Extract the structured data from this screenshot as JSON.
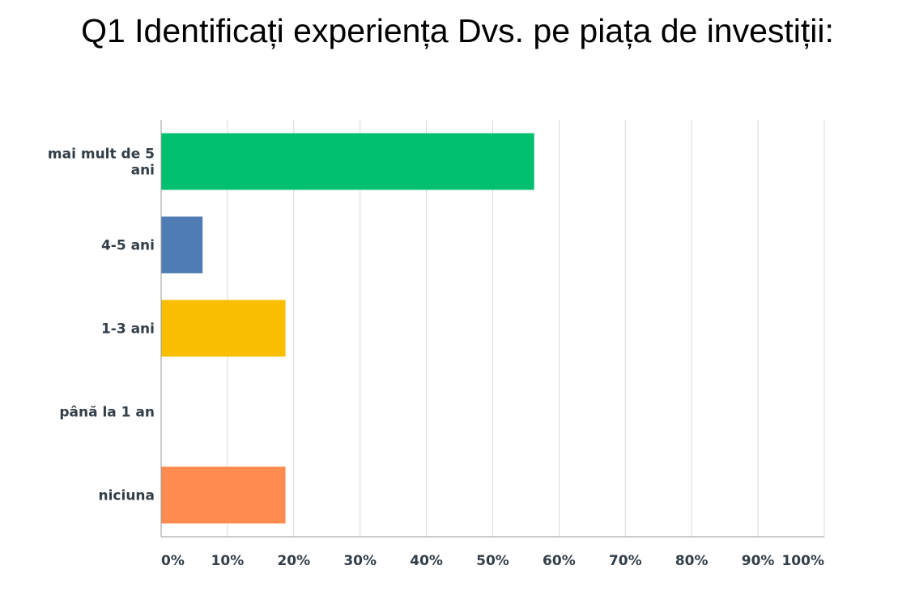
{
  "chart_data": {
    "type": "bar",
    "orientation": "horizontal",
    "title": "Q1 Identificați experiența Dvs. pe piața de investiții:",
    "categories": [
      [
        "mai mult de 5",
        "ani"
      ],
      [
        "4-5 ani"
      ],
      [
        "1-3 ani"
      ],
      [
        "până la 1 an"
      ],
      [
        "niciuna"
      ]
    ],
    "values": [
      56.25,
      6.25,
      18.75,
      0,
      18.75
    ],
    "colors": [
      "#00bf6f",
      "#507cb6",
      "#f9be00",
      "#6bc8cd",
      "#ff8b4f"
    ],
    "xlim": [
      0,
      100
    ],
    "xticks": [
      0,
      10,
      20,
      30,
      40,
      50,
      60,
      70,
      80,
      90,
      100
    ],
    "tick_labels": [
      "0%",
      "10%",
      "20%",
      "30%",
      "40%",
      "50%",
      "60%",
      "70%",
      "80%",
      "90%",
      "100%"
    ],
    "grid": true
  }
}
